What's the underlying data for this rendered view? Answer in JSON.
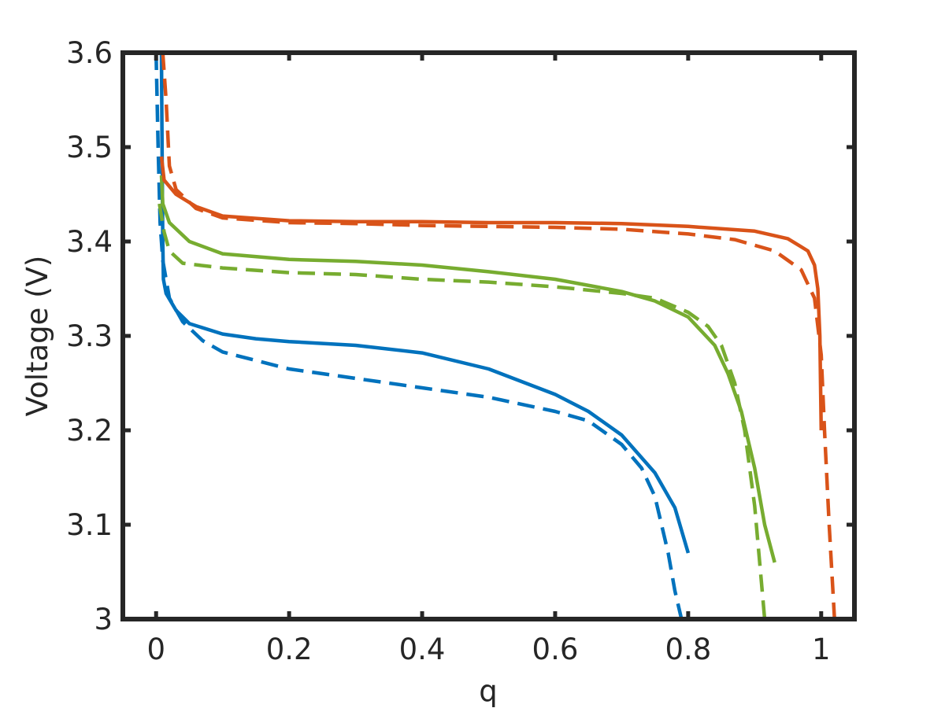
{
  "chart_data": {
    "type": "line",
    "title": "",
    "xlabel": "q",
    "ylabel": "Voltage (V)",
    "xlim": [
      -0.05,
      1.05
    ],
    "ylim": [
      3.0,
      3.6
    ],
    "xticks": [
      0,
      0.2,
      0.4,
      0.6,
      0.8,
      1
    ],
    "xtick_labels": [
      "0",
      "0.2",
      "0.4",
      "0.6",
      "0.8",
      "1"
    ],
    "yticks": [
      3.0,
      3.1,
      3.2,
      3.3,
      3.4,
      3.5,
      3.6
    ],
    "ytick_labels": [
      "3",
      "3.1",
      "3.2",
      "3.3",
      "3.4",
      "3.5",
      "3.6"
    ],
    "grid": false,
    "series": [
      {
        "color": "#0072BD",
        "style": "solid",
        "points": [
          [
            0.008,
            3.6
          ],
          [
            0.009,
            3.5
          ],
          [
            0.01,
            3.4
          ],
          [
            0.011,
            3.36
          ],
          [
            0.015,
            3.345
          ],
          [
            0.03,
            3.327
          ],
          [
            0.05,
            3.313
          ],
          [
            0.1,
            3.302
          ],
          [
            0.15,
            3.297
          ],
          [
            0.2,
            3.294
          ],
          [
            0.3,
            3.29
          ],
          [
            0.4,
            3.282
          ],
          [
            0.5,
            3.265
          ],
          [
            0.6,
            3.238
          ],
          [
            0.65,
            3.22
          ],
          [
            0.7,
            3.195
          ],
          [
            0.75,
            3.155
          ],
          [
            0.78,
            3.118
          ],
          [
            0.8,
            3.07
          ]
        ]
      },
      {
        "color": "#0072BD",
        "style": "dashed",
        "points": [
          [
            0.0,
            3.6
          ],
          [
            0.003,
            3.5
          ],
          [
            0.006,
            3.42
          ],
          [
            0.01,
            3.38
          ],
          [
            0.02,
            3.34
          ],
          [
            0.04,
            3.315
          ],
          [
            0.07,
            3.295
          ],
          [
            0.1,
            3.283
          ],
          [
            0.2,
            3.265
          ],
          [
            0.3,
            3.255
          ],
          [
            0.4,
            3.245
          ],
          [
            0.5,
            3.235
          ],
          [
            0.6,
            3.22
          ],
          [
            0.65,
            3.21
          ],
          [
            0.7,
            3.185
          ],
          [
            0.73,
            3.16
          ],
          [
            0.75,
            3.13
          ],
          [
            0.77,
            3.07
          ],
          [
            0.78,
            3.03
          ],
          [
            0.79,
            3.0
          ]
        ]
      },
      {
        "color": "#77AC30",
        "style": "solid",
        "points": [
          [
            0.008,
            3.47
          ],
          [
            0.01,
            3.44
          ],
          [
            0.02,
            3.42
          ],
          [
            0.05,
            3.4
          ],
          [
            0.1,
            3.387
          ],
          [
            0.2,
            3.381
          ],
          [
            0.3,
            3.379
          ],
          [
            0.4,
            3.375
          ],
          [
            0.5,
            3.368
          ],
          [
            0.6,
            3.36
          ],
          [
            0.7,
            3.347
          ],
          [
            0.75,
            3.337
          ],
          [
            0.8,
            3.32
          ],
          [
            0.84,
            3.29
          ],
          [
            0.86,
            3.26
          ],
          [
            0.88,
            3.22
          ],
          [
            0.9,
            3.16
          ],
          [
            0.915,
            3.1
          ],
          [
            0.93,
            3.06
          ]
        ]
      },
      {
        "color": "#77AC30",
        "style": "dashed",
        "points": [
          [
            0.005,
            3.44
          ],
          [
            0.012,
            3.41
          ],
          [
            0.02,
            3.39
          ],
          [
            0.04,
            3.377
          ],
          [
            0.1,
            3.372
          ],
          [
            0.2,
            3.367
          ],
          [
            0.3,
            3.365
          ],
          [
            0.4,
            3.36
          ],
          [
            0.5,
            3.357
          ],
          [
            0.6,
            3.352
          ],
          [
            0.7,
            3.345
          ],
          [
            0.75,
            3.34
          ],
          [
            0.8,
            3.325
          ],
          [
            0.83,
            3.31
          ],
          [
            0.85,
            3.29
          ],
          [
            0.87,
            3.25
          ],
          [
            0.885,
            3.2
          ],
          [
            0.9,
            3.12
          ],
          [
            0.91,
            3.04
          ],
          [
            0.915,
            3.0
          ]
        ]
      },
      {
        "color": "#D95319",
        "style": "solid",
        "points": [
          [
            0.008,
            3.49
          ],
          [
            0.012,
            3.465
          ],
          [
            0.03,
            3.45
          ],
          [
            0.06,
            3.437
          ],
          [
            0.1,
            3.427
          ],
          [
            0.2,
            3.422
          ],
          [
            0.3,
            3.421
          ],
          [
            0.4,
            3.421
          ],
          [
            0.5,
            3.42
          ],
          [
            0.6,
            3.42
          ],
          [
            0.7,
            3.419
          ],
          [
            0.8,
            3.416
          ],
          [
            0.9,
            3.411
          ],
          [
            0.95,
            3.403
          ],
          [
            0.98,
            3.39
          ],
          [
            0.99,
            3.375
          ],
          [
            0.995,
            3.35
          ],
          [
            0.998,
            3.3
          ],
          [
            1.0,
            3.2
          ]
        ]
      },
      {
        "color": "#D95319",
        "style": "dashed",
        "points": [
          [
            0.01,
            3.6
          ],
          [
            0.015,
            3.55
          ],
          [
            0.02,
            3.48
          ],
          [
            0.03,
            3.455
          ],
          [
            0.06,
            3.435
          ],
          [
            0.1,
            3.425
          ],
          [
            0.2,
            3.42
          ],
          [
            0.3,
            3.419
          ],
          [
            0.4,
            3.417
          ],
          [
            0.5,
            3.416
          ],
          [
            0.6,
            3.415
          ],
          [
            0.7,
            3.413
          ],
          [
            0.8,
            3.408
          ],
          [
            0.87,
            3.402
          ],
          [
            0.93,
            3.39
          ],
          [
            0.97,
            3.37
          ],
          [
            0.99,
            3.34
          ],
          [
            1.0,
            3.28
          ],
          [
            1.005,
            3.2
          ],
          [
            1.012,
            3.1
          ],
          [
            1.02,
            3.0
          ]
        ]
      }
    ]
  }
}
